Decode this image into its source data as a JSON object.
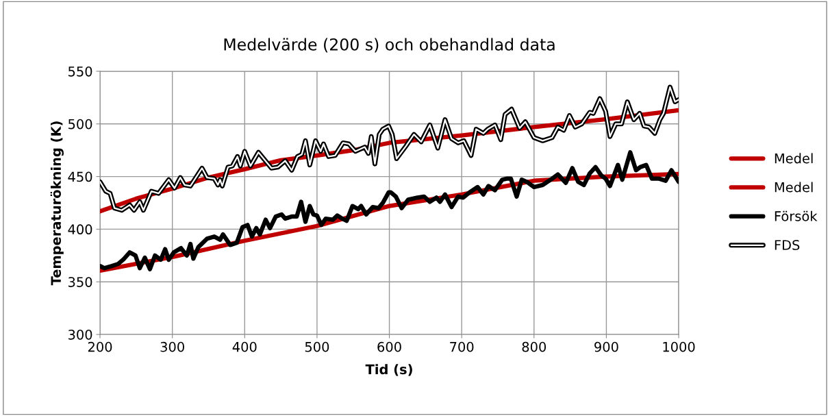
{
  "chart_data": {
    "type": "line",
    "title": "Medelvärde (200 s) och obehandlad data",
    "xlabel": "Tid (s)",
    "ylabel": "Temperaturökning (K)",
    "xlim": [
      200,
      1000
    ],
    "xticks": [
      200,
      300,
      400,
      500,
      600,
      700,
      800,
      900,
      1000
    ],
    "ylim": [
      300,
      550
    ],
    "yticks": [
      300,
      350,
      400,
      450,
      500,
      550
    ],
    "grid": true,
    "legend": "right",
    "marker": "none",
    "line_style": "solid",
    "series": [
      {
        "name": "Medel",
        "color": "#c00000",
        "x": [
          200,
          250,
          300,
          350,
          400,
          450,
          500,
          550,
          600,
          700,
          800,
          900,
          1000
        ],
        "values": [
          417,
          429,
          438.5,
          449,
          457,
          465.5,
          470,
          475,
          482,
          489,
          497,
          504.5,
          513
        ]
      },
      {
        "name": "Medel",
        "color": "#c00000",
        "x": [
          200,
          300,
          400,
          500,
          600,
          700,
          800,
          900,
          1000
        ],
        "values": [
          360.6,
          373.6,
          389,
          403,
          422,
          433,
          446,
          450,
          452.5
        ]
      },
      {
        "name": "Försök",
        "color": "#000000",
        "x": [
          200,
          206,
          216,
          225,
          232,
          241,
          249,
          255,
          262,
          269,
          276,
          284,
          290,
          295,
          302,
          312,
          320,
          325,
          329,
          336,
          348,
          358,
          366,
          370,
          380,
          389,
          397,
          404,
          410,
          416,
          421,
          429,
          435,
          443,
          451,
          456,
          465,
          472,
          478,
          484,
          490,
          495,
          500,
          506,
          512,
          522,
          528,
          535,
          541,
          549,
          557,
          561,
          568,
          577,
          585,
          591,
          599,
          602,
          609,
          617,
          626,
          639,
          648,
          656,
          665,
          670,
          677,
          686,
          695,
          702,
          711,
          722,
          730,
          737,
          746,
          756,
          762,
          768,
          776,
          783,
          790,
          800,
          812,
          823,
          833,
          844,
          853,
          861,
          869,
          877,
          885,
          893,
          899,
          905,
          916,
          922,
          933,
          941,
          947,
          955,
          963,
          973,
          982,
          990,
          1000
        ],
        "values": [
          365,
          363,
          365,
          367,
          371,
          378,
          375,
          363,
          373,
          362,
          375,
          371,
          381,
          371,
          378,
          382,
          375,
          386,
          372,
          383,
          391,
          393,
          390,
          395,
          385,
          387,
          402,
          404,
          393,
          401,
          395,
          409,
          401,
          412,
          414,
          410,
          412,
          412,
          426,
          407,
          422,
          414,
          413,
          404,
          410,
          409,
          413,
          410,
          408,
          422,
          419,
          422,
          414,
          421,
          420,
          425,
          435,
          435,
          431,
          420,
          428,
          430,
          431,
          426,
          430,
          426,
          433,
          421,
          431,
          430,
          435,
          440,
          433,
          441,
          437,
          447,
          448,
          448,
          431,
          447,
          445,
          440,
          442,
          447,
          452,
          444,
          458,
          445,
          442,
          453,
          459,
          451,
          448,
          441,
          461,
          447,
          473,
          456,
          459,
          461,
          448,
          448,
          446,
          456,
          445
        ]
      },
      {
        "name": "FDS",
        "color": "#000000",
        "x": [
          200,
          208,
          214,
          220,
          230,
          241,
          247,
          255,
          260,
          271,
          281,
          295,
          303,
          311,
          317,
          325,
          341,
          348,
          358,
          363,
          366,
          369,
          377,
          383,
          390,
          394,
          400,
          408,
          419,
          437,
          446,
          456,
          465,
          473,
          479,
          484,
          490,
          498,
          505,
          509,
          516,
          525,
          536,
          544,
          553,
          566,
          571,
          575,
          580,
          586,
          591,
          599,
          604,
          610,
          623,
          634,
          644,
          656,
          667,
          677,
          686,
          695,
          703,
          713,
          720,
          730,
          736,
          746,
          754,
          760,
          769,
          780,
          788,
          800,
          812,
          825,
          833,
          841,
          849,
          857,
          866,
          877,
          882,
          891,
          899,
          905,
          913,
          921,
          929,
          938,
          946,
          952,
          959,
          967,
          974,
          979,
          988,
          995,
          1000
        ],
        "values": [
          445,
          436,
          434,
          420,
          418,
          423,
          418,
          426,
          418,
          436,
          434,
          447,
          439,
          449,
          442,
          441,
          458,
          449,
          448,
          442,
          447,
          441,
          459,
          460,
          469,
          460,
          474,
          460,
          473,
          458,
          459,
          465,
          456,
          469,
          471,
          484,
          461,
          484,
          474,
          481,
          469,
          470,
          482,
          481,
          474,
          478,
          472,
          488,
          462,
          490,
          495,
          498,
          490,
          467,
          479,
          490,
          483,
          499,
          477,
          504,
          486,
          482,
          484,
          470,
          495,
          491,
          495,
          499,
          485,
          509,
          514,
          496,
          502,
          487,
          484,
          487,
          497,
          494,
          508,
          497,
          500,
          511,
          510,
          524,
          512,
          488,
          500,
          500,
          521,
          504,
          510,
          498,
          497,
          491,
          504,
          510,
          535,
          521,
          523
        ]
      }
    ]
  }
}
